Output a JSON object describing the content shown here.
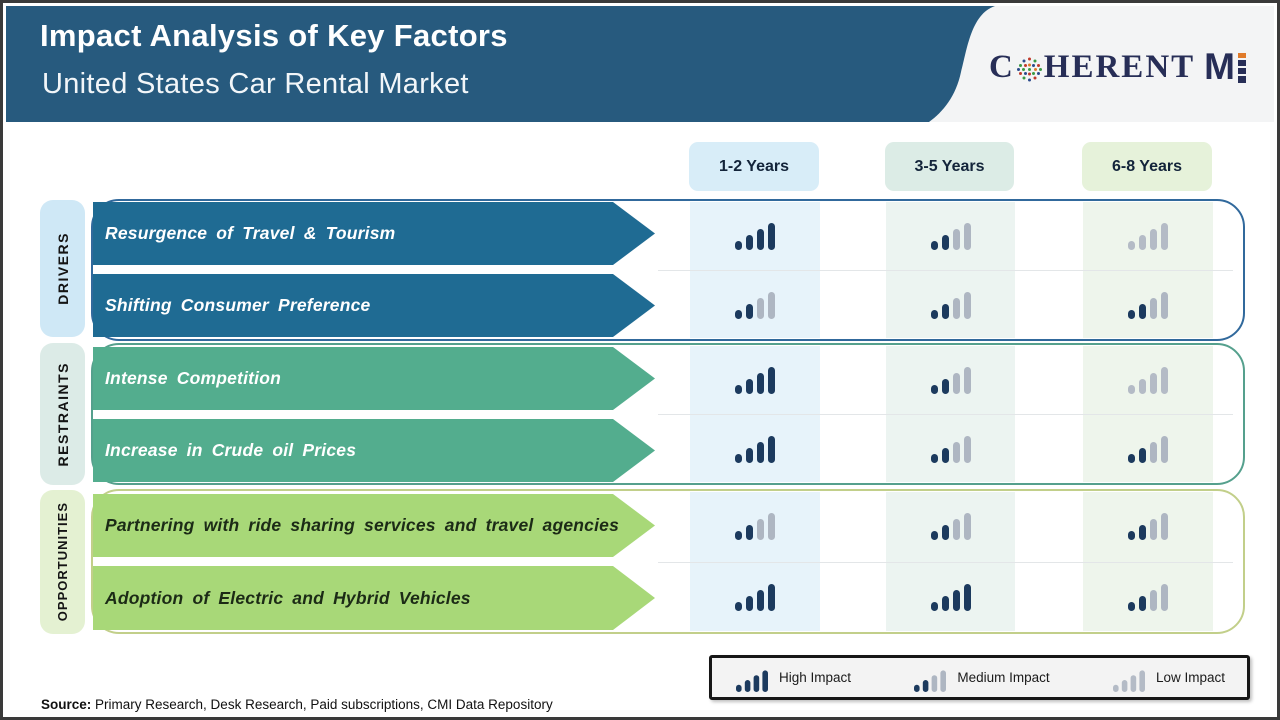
{
  "header": {
    "title": "Impact Analysis of Key Factors",
    "subtitle": "United States Car Rental Market"
  },
  "logo": {
    "prefix": "C",
    "suffix": "HERENT",
    "m": "M",
    "brand": "CoherentMI",
    "globe_icon": "dotted-globe-o-icon",
    "colors": {
      "navy": "#272e57",
      "orange": "#e07b2a",
      "green": "#3a9a44",
      "red": "#c03a2b",
      "blue": "#2b4a8b"
    }
  },
  "columns": [
    {
      "label": "1-2 Years"
    },
    {
      "label": "3-5 Years"
    },
    {
      "label": "6-8 Years"
    }
  ],
  "groups": [
    {
      "label": "DRIVERS",
      "color": "#1f6b93",
      "rows": [
        {
          "label": "Resurgence of Travel & Tourism",
          "impacts": [
            "high",
            "medium",
            "low"
          ]
        },
        {
          "label": "Shifting Consumer Preference",
          "impacts": [
            "medium",
            "medium",
            "medium"
          ]
        }
      ]
    },
    {
      "label": "RESTRAINTS",
      "color": "#53ad8e",
      "rows": [
        {
          "label": "Intense Competition",
          "impacts": [
            "high",
            "medium",
            "low"
          ]
        },
        {
          "label": "Increase in Crude oil Prices",
          "impacts": [
            "high",
            "medium",
            "medium"
          ]
        }
      ]
    },
    {
      "label": "OPPORTUNITIES",
      "color": "#a8d878",
      "rows": [
        {
          "label": "Partnering with ride sharing services and travel agencies",
          "impacts": [
            "medium",
            "medium",
            "medium"
          ]
        },
        {
          "label": "Adoption of Electric and Hybrid Vehicles",
          "impacts": [
            "high",
            "high",
            "medium"
          ]
        }
      ]
    }
  ],
  "legend": {
    "items": [
      {
        "level": "high",
        "label": "High Impact"
      },
      {
        "level": "medium",
        "label": "Medium Impact"
      },
      {
        "level": "low",
        "label": "Low Impact"
      }
    ]
  },
  "source": {
    "label": "Source:",
    "text": "Primary Research, Desk Research, Paid subscriptions, CMI Data Repository"
  },
  "colors": {
    "header_bg": "#275a7e",
    "impact_high": "#1c3a5e",
    "impact_low": "#aeb6c2",
    "column_tints": [
      "#d8edf8",
      "#dcece6",
      "#e6f2da"
    ]
  }
}
